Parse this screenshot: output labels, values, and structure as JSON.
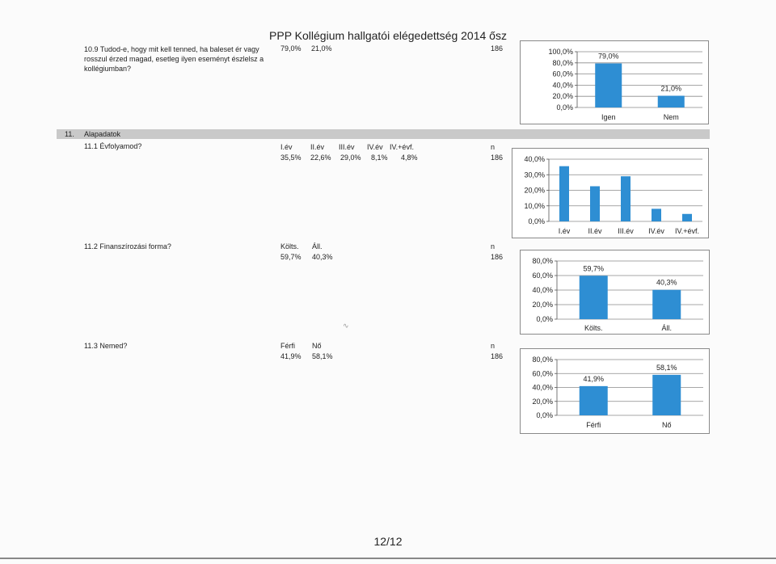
{
  "header": {
    "title": "PPP Kollégium hallgatói elégedettség 2014 ősz"
  },
  "footer": {
    "page": "12/12"
  },
  "q10": {
    "question": "10.9 Tudod-e, hogy mit kell tenned, ha baleset ér vagy rosszul érzed magad, esetleg ilyen eseményt észlelsz a kollégiumban?",
    "values": [
      "79,0%",
      "21,0%"
    ],
    "n": "186"
  },
  "section": {
    "number": "11.",
    "label": "Alapadatok"
  },
  "q11_1": {
    "question": "11.1 Évfolyamod?",
    "headers": [
      "I.év",
      "II.év",
      "III.év",
      "IV.év",
      "IV.+évf."
    ],
    "values": [
      "35,5%",
      "22,6%",
      "29,0%",
      "8,1%",
      "4,8%"
    ],
    "n_label": "n",
    "n": "186"
  },
  "q11_2": {
    "question": "11.2 Finanszírozási forma?",
    "headers": [
      "Költs.",
      "Áll."
    ],
    "values": [
      "59,7%",
      "40,3%"
    ],
    "n_label": "n",
    "n": "186"
  },
  "q11_3": {
    "question": "11.3 Nemed?",
    "headers": [
      "Férfi",
      "Nő"
    ],
    "values": [
      "41,9%",
      "58,1%"
    ],
    "n_label": "n",
    "n": "186"
  },
  "chart_data": [
    {
      "type": "bar",
      "categories": [
        "Igen",
        "Nem"
      ],
      "values": [
        79.0,
        21.0
      ],
      "data_labels": [
        "79,0%",
        "21,0%"
      ],
      "yticks": [
        "100,0%",
        "80,0%",
        "60,0%",
        "40,0%",
        "20,0%",
        "0,0%"
      ],
      "ylim": [
        0,
        100
      ],
      "grid": true,
      "bar_color": "#2e8ed3"
    },
    {
      "type": "bar",
      "categories": [
        "I.év",
        "II.év",
        "III.év",
        "IV.év",
        "IV.+évf."
      ],
      "values": [
        35.5,
        22.6,
        29.0,
        8.1,
        4.8
      ],
      "data_labels": [],
      "yticks": [
        "40,0%",
        "30,0%",
        "20,0%",
        "10,0%",
        "0,0%"
      ],
      "ylim": [
        0,
        40
      ],
      "grid": true,
      "bar_color": "#2e8ed3"
    },
    {
      "type": "bar",
      "categories": [
        "Költs.",
        "Áll."
      ],
      "values": [
        59.7,
        40.3
      ],
      "data_labels": [
        "59,7%",
        "40,3%"
      ],
      "yticks": [
        "80,0%",
        "60,0%",
        "40,0%",
        "20,0%",
        "0,0%"
      ],
      "ylim": [
        0,
        80
      ],
      "grid": true,
      "bar_color": "#2e8ed3"
    },
    {
      "type": "bar",
      "categories": [
        "Férfi",
        "Nő"
      ],
      "values": [
        41.9,
        58.1
      ],
      "data_labels": [
        "41,9%",
        "58,1%"
      ],
      "yticks": [
        "80,0%",
        "60,0%",
        "40,0%",
        "20,0%",
        "0,0%"
      ],
      "ylim": [
        0,
        80
      ],
      "grid": true,
      "bar_color": "#2e8ed3"
    }
  ]
}
